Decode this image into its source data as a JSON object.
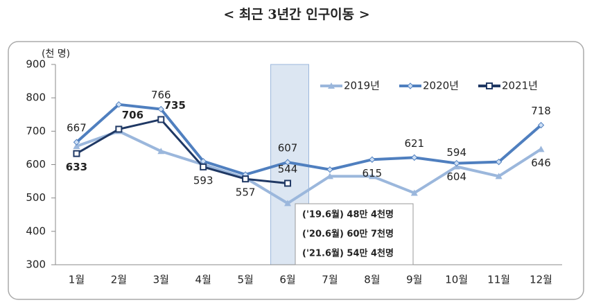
{
  "chart_data": {
    "type": "line",
    "title": "< 최근 3년간 인구이동 >",
    "y_unit_label": "(천 명)",
    "categories": [
      "1월",
      "2월",
      "3월",
      "4월",
      "5월",
      "6월",
      "7월",
      "8월",
      "9월",
      "10월",
      "11월",
      "12월"
    ],
    "series": [
      {
        "name": "2019년",
        "color": "#9bb7dc",
        "marker": "triangle",
        "values": [
          655,
          700,
          640,
          600,
          560,
          484,
          565,
          565,
          515,
          594,
          565,
          646
        ],
        "value_labels": [
          null,
          null,
          null,
          null,
          null,
          null,
          null,
          null,
          null,
          "594",
          null,
          "646"
        ]
      },
      {
        "name": "2020년",
        "color": "#4f7fbf",
        "marker": "diamond",
        "values": [
          667,
          780,
          766,
          610,
          570,
          607,
          585,
          615,
          621,
          604,
          608,
          718
        ],
        "value_labels": [
          "667",
          null,
          "766",
          null,
          null,
          "607",
          null,
          "615",
          "621",
          "604",
          null,
          "718"
        ]
      },
      {
        "name": "2021년",
        "color": "#1f3864",
        "marker": "square",
        "values": [
          633,
          706,
          735,
          593,
          557,
          544,
          null,
          null,
          null,
          null,
          null,
          null
        ],
        "value_labels": [
          "633",
          "706",
          "735",
          "593",
          "557",
          "544",
          null,
          null,
          null,
          null,
          null,
          null
        ]
      }
    ],
    "ylim": [
      300,
      900
    ],
    "yticks": [
      300,
      400,
      500,
      600,
      700,
      800,
      900
    ],
    "legend": "top-right",
    "highlight_category": 5,
    "annotation": [
      "('19.6월) 48만 4천명",
      "('20.6월) 60만 7천명",
      "('21.6월) 54만 4천명"
    ]
  }
}
